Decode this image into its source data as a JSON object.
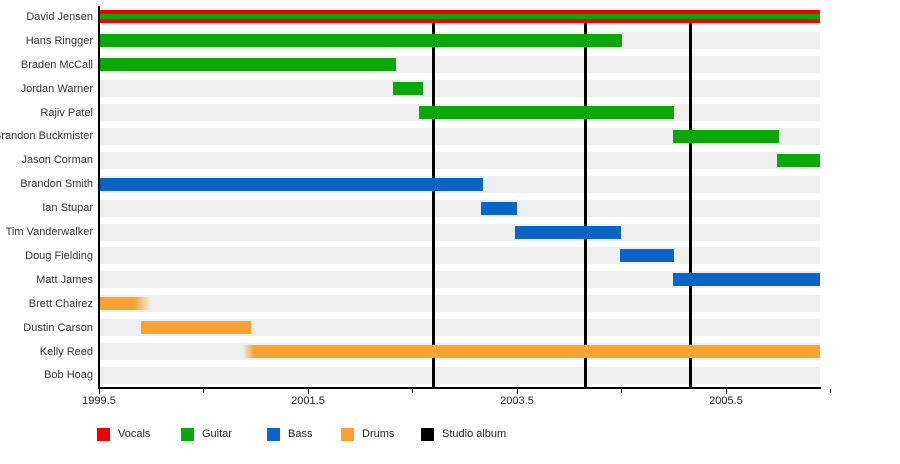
{
  "chart_data": {
    "type": "timeline",
    "description": "Band member timeline (gantt-style), roles shown as colored bars per member, studio albums as vertical black lines",
    "x_axis": {
      "start": 1999.5,
      "end": 2006.5,
      "plot_end": 2006.4,
      "major_ticks": [
        1999.5,
        2001.5,
        2003.5,
        2005.5
      ],
      "minor_ticks": [
        2000.5,
        2002.5,
        2004.5,
        2006.5
      ],
      "tick_labels": [
        "1999.5",
        "2001.5",
        "2003.5",
        "2005.5"
      ]
    },
    "colors": {
      "Vocals": "#ee0000",
      "Guitar": "#0aa60a",
      "Bass": "#0b65c7",
      "Drums": "#f7a233",
      "Studio album": "#000000",
      "row_band": "#efefef"
    },
    "legend": [
      {
        "label": "Vocals",
        "color": "#ee0000"
      },
      {
        "label": "Guitar",
        "color": "#0aa60a"
      },
      {
        "label": "Bass",
        "color": "#0b65c7"
      },
      {
        "label": "Drums",
        "color": "#f7a233"
      },
      {
        "label": "Studio album",
        "color": "#000000"
      }
    ],
    "studio_albums": [
      2002.7,
      2004.16,
      2005.16
    ],
    "members": [
      {
        "name": "David Jensen",
        "bars": [
          {
            "roles": [
              "Vocals",
              "Guitar"
            ],
            "start": 1999.5,
            "end": 2006.4
          }
        ]
      },
      {
        "name": "Hans Ringger",
        "bars": [
          {
            "roles": [
              "Guitar"
            ],
            "start": 1999.5,
            "end": 2004.5
          }
        ]
      },
      {
        "name": "Braden McCall",
        "bars": [
          {
            "roles": [
              "Guitar"
            ],
            "start": 1999.5,
            "end": 2002.34
          }
        ]
      },
      {
        "name": "Jordan Warner",
        "bars": [
          {
            "roles": [
              "Guitar"
            ],
            "start": 2002.31,
            "end": 2002.6
          }
        ]
      },
      {
        "name": "Rajiv Patel",
        "bars": [
          {
            "roles": [
              "Guitar"
            ],
            "start": 2002.56,
            "end": 2005.0
          }
        ]
      },
      {
        "name": "Brandon Buckmister",
        "bars": [
          {
            "roles": [
              "Guitar"
            ],
            "start": 2004.99,
            "end": 2006.01
          }
        ]
      },
      {
        "name": "Jason Corman",
        "bars": [
          {
            "roles": [
              "Guitar"
            ],
            "start": 2005.99,
            "end": 2006.4
          }
        ]
      },
      {
        "name": "Brandon Smith",
        "bars": [
          {
            "roles": [
              "Bass"
            ],
            "start": 1999.5,
            "end": 2003.17
          }
        ]
      },
      {
        "name": "Ian Stupar",
        "bars": [
          {
            "roles": [
              "Bass"
            ],
            "start": 2003.16,
            "end": 2003.5
          }
        ]
      },
      {
        "name": "Tim Vanderwalker",
        "bars": [
          {
            "roles": [
              "Bass"
            ],
            "start": 2003.48,
            "end": 2004.5
          }
        ]
      },
      {
        "name": "Doug Fielding",
        "bars": [
          {
            "roles": [
              "Bass"
            ],
            "start": 2004.49,
            "end": 2005.0
          }
        ]
      },
      {
        "name": "Matt James",
        "bars": [
          {
            "roles": [
              "Bass"
            ],
            "start": 2004.99,
            "end": 2006.4
          }
        ]
      },
      {
        "name": "Brett Chairez",
        "bars": [
          {
            "roles": [
              "Drums"
            ],
            "start": 1999.5,
            "end": 2000.0,
            "fade": "right"
          }
        ]
      },
      {
        "name": "Dustin Carson",
        "bars": [
          {
            "roles": [
              "Drums"
            ],
            "start": 1999.9,
            "end": 2000.95
          }
        ]
      },
      {
        "name": "Kelly Reed",
        "bars": [
          {
            "roles": [
              "Drums"
            ],
            "start": 2000.88,
            "end": 2006.4,
            "fade": "left"
          }
        ]
      },
      {
        "name": "Bob Hoag",
        "bars": []
      }
    ]
  }
}
